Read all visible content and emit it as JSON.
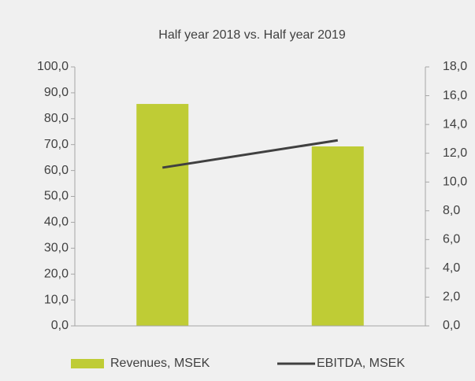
{
  "chart_data": {
    "type": "bar",
    "title": "Half year 2018 vs. Half year 2019",
    "categories": [
      null,
      null
    ],
    "series": [
      {
        "name": "Revenues, MSEK",
        "color": "#bfcc35",
        "values": [
          85.7,
          69.3
        ]
      },
      {
        "name": "EBITDA, MSEK",
        "color": "#404040",
        "type": "line",
        "axis": "y2",
        "values": [
          11.0,
          12.9
        ]
      }
    ],
    "ylim": [
      0,
      100
    ],
    "yticks": [
      {
        "value": 0,
        "label": "0,0"
      },
      {
        "value": 10,
        "label": "10,0"
      },
      {
        "value": 20,
        "label": "20,0"
      },
      {
        "value": 30,
        "label": "30,0"
      },
      {
        "value": 40,
        "label": "40,0"
      },
      {
        "value": 50,
        "label": "50,0"
      },
      {
        "value": 60,
        "label": "60,0"
      },
      {
        "value": 70,
        "label": "70,0"
      },
      {
        "value": 80,
        "label": "80,0"
      },
      {
        "value": 90,
        "label": "90,0"
      },
      {
        "value": 100,
        "label": "100,0"
      }
    ],
    "y2lim": [
      0,
      18
    ],
    "y2ticks": [
      {
        "value": 0,
        "label": "0,0"
      },
      {
        "value": 2,
        "label": "2,0"
      },
      {
        "value": 4,
        "label": "4,0"
      },
      {
        "value": 6,
        "label": "6,0"
      },
      {
        "value": 8,
        "label": "8,0"
      },
      {
        "value": 10,
        "label": "10,0"
      },
      {
        "value": 12,
        "label": "12,0"
      },
      {
        "value": 14,
        "label": "14,0"
      },
      {
        "value": 16,
        "label": "16,0"
      },
      {
        "value": 18,
        "label": "18,0"
      }
    ],
    "legend": "bottom"
  }
}
